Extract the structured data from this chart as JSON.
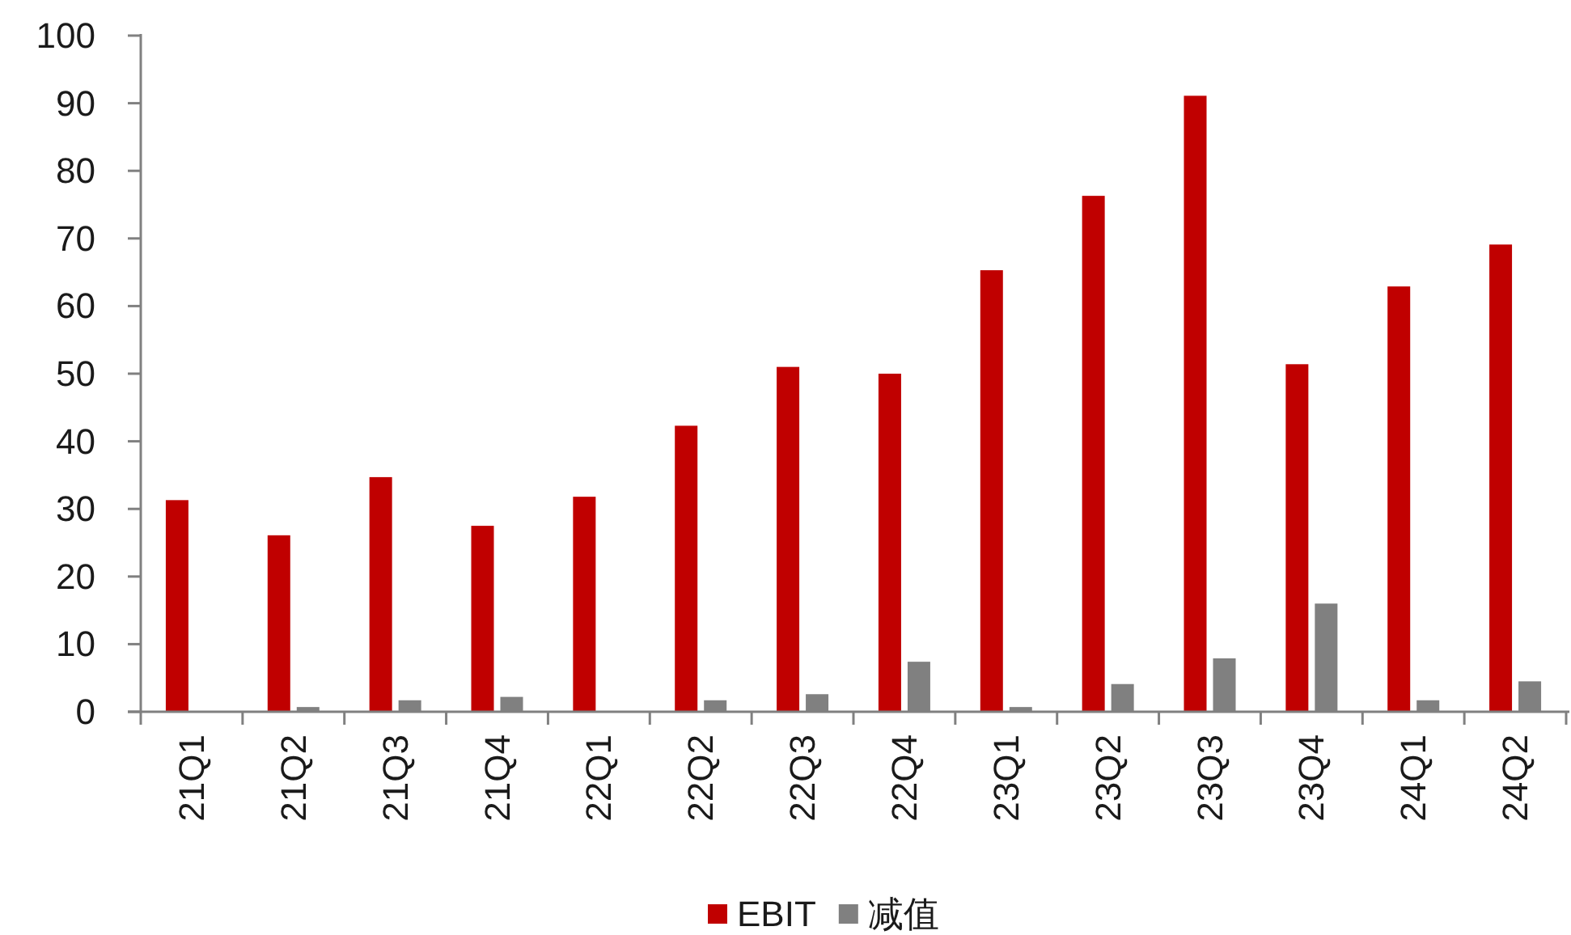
{
  "chart_data": {
    "type": "bar",
    "categories": [
      "21Q1",
      "21Q2",
      "21Q3",
      "21Q4",
      "22Q1",
      "22Q2",
      "22Q3",
      "22Q4",
      "23Q1",
      "23Q2",
      "23Q3",
      "23Q4",
      "24Q1",
      "24Q2"
    ],
    "series": [
      {
        "name": "EBIT",
        "color": "#c00000",
        "values": [
          31.3,
          26.1,
          34.7,
          27.5,
          31.8,
          42.3,
          51.0,
          50.0,
          65.3,
          76.3,
          91.1,
          51.4,
          62.9,
          69.1
        ]
      },
      {
        "name": "减值",
        "color": "#808080",
        "values": [
          0,
          0.7,
          1.7,
          2.2,
          0,
          1.7,
          2.6,
          7.4,
          0.7,
          4.1,
          7.9,
          16.0,
          1.7,
          4.5
        ]
      }
    ],
    "ylim": [
      0,
      100
    ],
    "yticks": [
      0,
      10,
      20,
      30,
      40,
      50,
      60,
      70,
      80,
      90,
      100
    ],
    "grid": false,
    "legend": "bottom"
  }
}
